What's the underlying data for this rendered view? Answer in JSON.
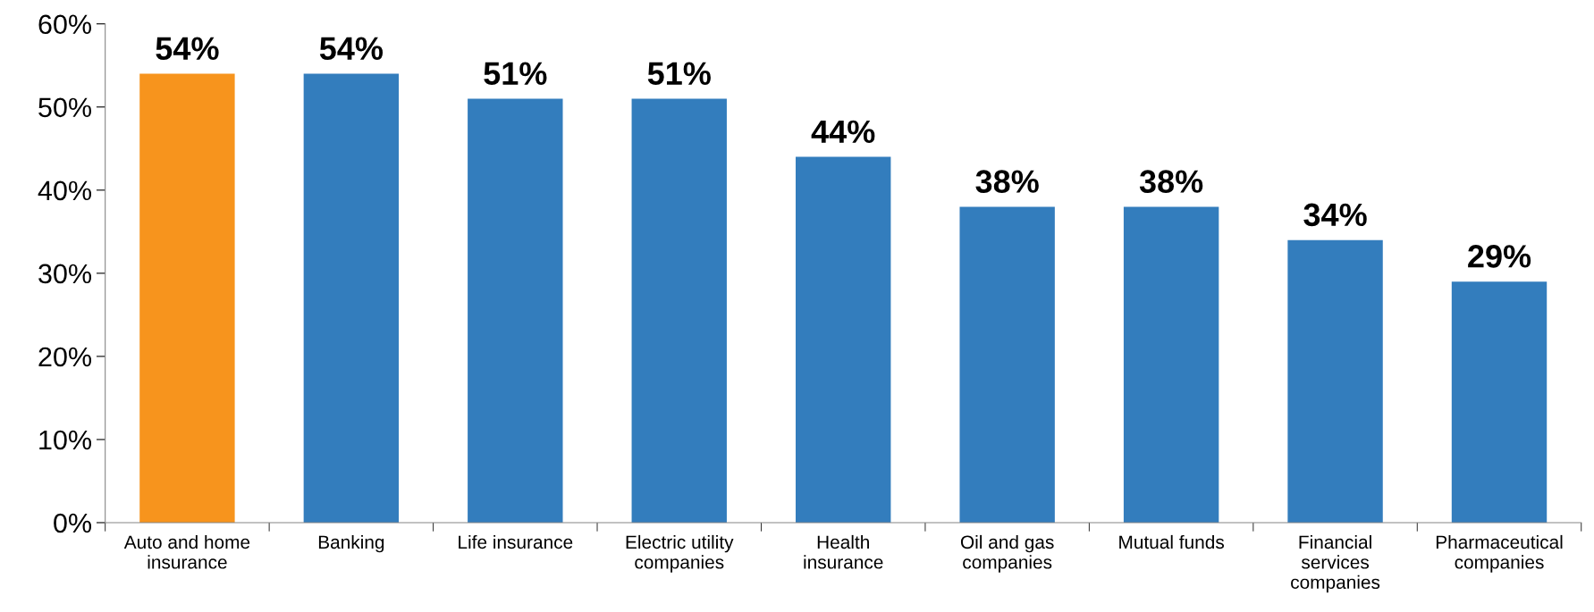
{
  "chart_data": {
    "type": "bar",
    "categories": [
      "Auto and home\ninsurance",
      "Banking",
      "Life insurance",
      "Electric utility\ncompanies",
      "Health\ninsurance",
      "Oil and gas\ncompanies",
      "Mutual funds",
      "Financial\nservices\ncompanies",
      "Pharmaceutical\ncompanies"
    ],
    "values": [
      54,
      54,
      51,
      51,
      44,
      38,
      38,
      34,
      29
    ],
    "colors": [
      "#f7941d",
      "#337dbd",
      "#337dbd",
      "#337dbd",
      "#337dbd",
      "#337dbd",
      "#337dbd",
      "#337dbd",
      "#337dbd"
    ],
    "value_labels": [
      "54%",
      "54%",
      "51%",
      "51%",
      "44%",
      "38%",
      "38%",
      "34%",
      "29%"
    ],
    "ylim": [
      0,
      60
    ],
    "yticks": [
      {
        "value": 0,
        "label": "0%"
      },
      {
        "value": 10,
        "label": "10%"
      },
      {
        "value": 20,
        "label": "20%"
      },
      {
        "value": 30,
        "label": "30%"
      },
      {
        "value": 40,
        "label": "40%"
      },
      {
        "value": 50,
        "label": "50%"
      },
      {
        "value": 60,
        "label": "60%"
      }
    ],
    "grid": false
  }
}
